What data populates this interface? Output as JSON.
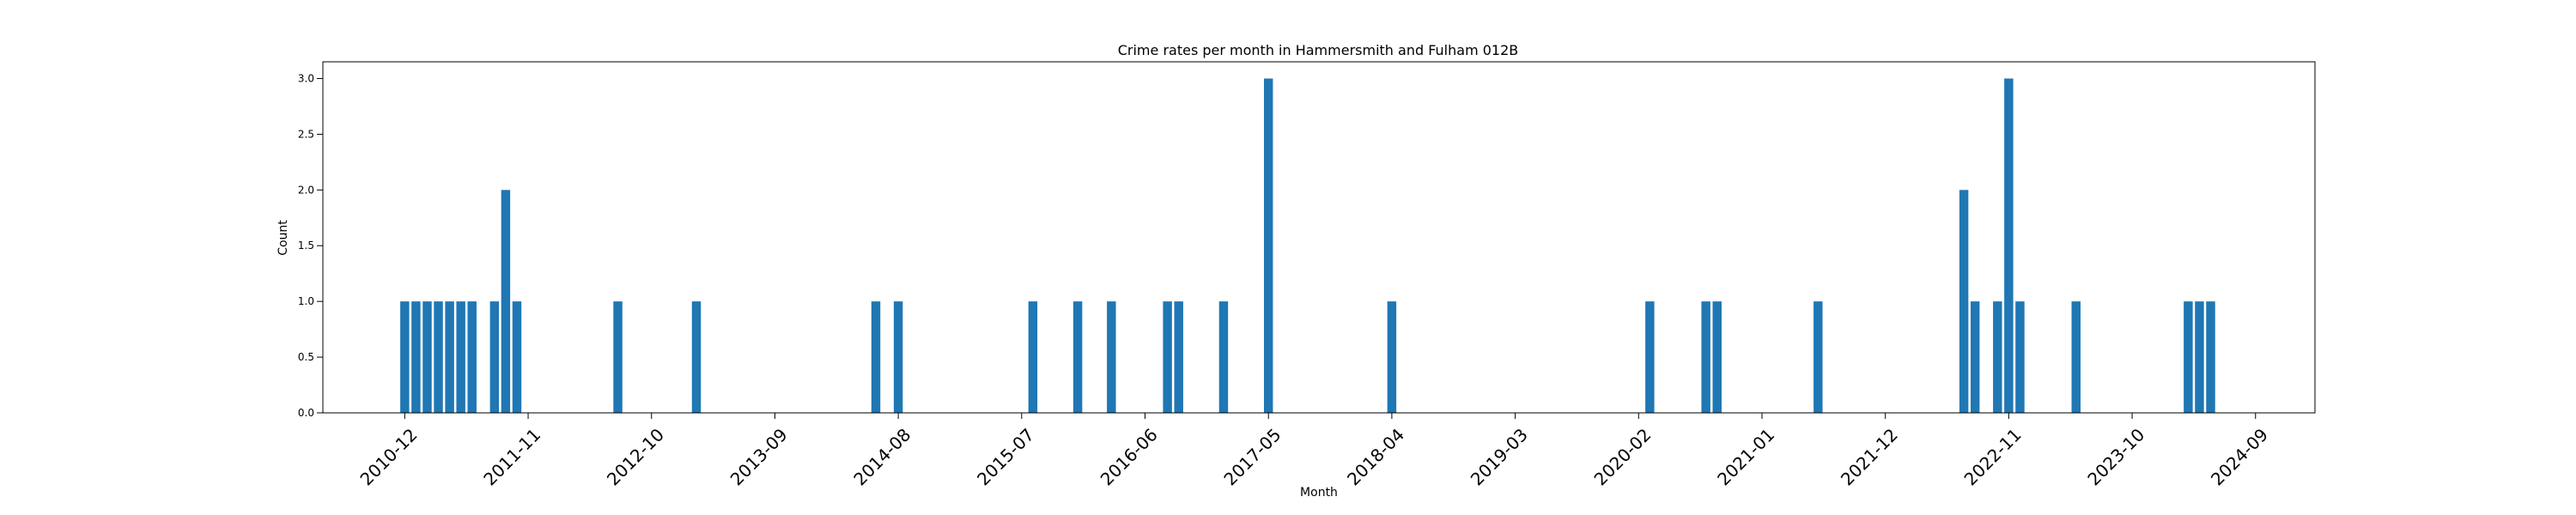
{
  "chart_data": {
    "type": "bar",
    "title": "Crime rates per month in Hammersmith and Fulham 012B",
    "xlabel": "Month",
    "ylabel": "Count",
    "ylim": [
      0,
      3.15
    ],
    "yticks": [
      "0.0",
      "0.5",
      "1.0",
      "1.5",
      "2.0",
      "2.5",
      "3.0"
    ],
    "xticks": [
      "2010-12",
      "2011-11",
      "2012-10",
      "2013-09",
      "2014-08",
      "2015-07",
      "2016-06",
      "2017-05",
      "2018-04",
      "2019-03",
      "2020-02",
      "2021-01",
      "2021-12",
      "2022-11",
      "2023-10",
      "2024-09"
    ],
    "x": [
      "2010-12",
      "2011-01",
      "2011-02",
      "2011-03",
      "2011-04",
      "2011-05",
      "2011-06",
      "2011-08",
      "2011-09",
      "2011-10",
      "2012-07",
      "2013-02",
      "2014-06",
      "2014-08",
      "2015-08",
      "2015-12",
      "2016-03",
      "2016-08",
      "2016-09",
      "2017-01",
      "2017-05",
      "2018-04",
      "2020-03",
      "2020-08",
      "2020-09",
      "2021-06",
      "2022-07",
      "2022-08",
      "2022-10",
      "2022-11",
      "2022-12",
      "2023-05",
      "2024-03",
      "2024-04",
      "2024-05"
    ],
    "values": [
      1,
      1,
      1,
      1,
      1,
      1,
      1,
      1,
      2,
      1,
      1,
      1,
      1,
      1,
      1,
      1,
      1,
      1,
      1,
      1,
      3,
      1,
      1,
      1,
      1,
      1,
      2,
      1,
      1,
      3,
      1,
      1,
      1,
      1,
      1
    ],
    "bar_color": "#1f77b4",
    "grid": false
  }
}
